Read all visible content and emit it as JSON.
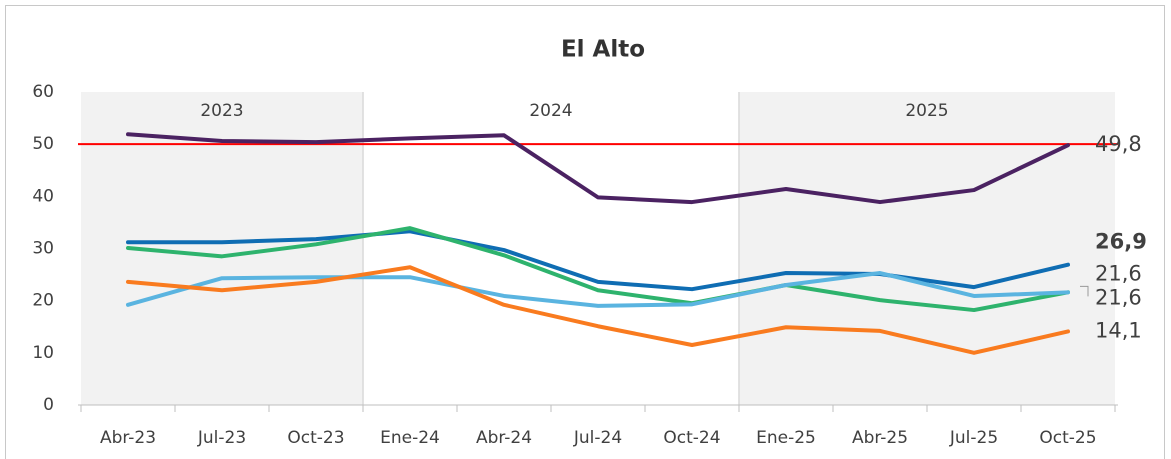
{
  "chart_data": {
    "type": "line",
    "title": "El Alto",
    "categories": [
      "Abr-23",
      "Jul-23",
      "Oct-23",
      "Ene-24",
      "Abr-24",
      "Jul-24",
      "Oct-24",
      "Ene-25",
      "Abr-25",
      "Jul-25",
      "Oct-25"
    ],
    "groups": [
      {
        "label": "2023",
        "count": 3
      },
      {
        "label": "2024",
        "count": 4
      },
      {
        "label": "2025",
        "count": 4
      }
    ],
    "reference": {
      "value": 50,
      "color": "#ff0000"
    },
    "series": [
      {
        "color": "#4b2262",
        "values": [
          51.9,
          50.6,
          50.4,
          51.1,
          51.7,
          39.8,
          38.9,
          41.4,
          38.9,
          41.2,
          49.8
        ],
        "value_labels": [
          null,
          null,
          null,
          null,
          null,
          null,
          null,
          null,
          null,
          null,
          "49,8"
        ],
        "label_color": "#404040"
      },
      {
        "color": "#0f6db3",
        "values": [
          31.2,
          31.2,
          31.8,
          33.3,
          29.7,
          23.6,
          22.2,
          25.3,
          25.1,
          22.6,
          26.9
        ],
        "value_labels": [
          null,
          null,
          null,
          null,
          null,
          null,
          null,
          null,
          null,
          null,
          "26,9"
        ],
        "label_color": "#0f6db3",
        "bold": true
      },
      {
        "color": "#2eb36d",
        "values": [
          30.1,
          28.5,
          30.8,
          33.9,
          28.7,
          22.0,
          19.5,
          23.0,
          20.1,
          18.2,
          21.6
        ],
        "value_labels": [
          null,
          null,
          null,
          null,
          null,
          null,
          null,
          null,
          null,
          null,
          "21,6"
        ],
        "label_color": "#2eb36d"
      },
      {
        "color": "#5ab4e0",
        "values": [
          19.2,
          24.3,
          24.5,
          24.5,
          20.9,
          19.0,
          19.3,
          23.0,
          25.3,
          20.9,
          21.6
        ],
        "value_labels": [
          null,
          null,
          null,
          null,
          null,
          null,
          null,
          null,
          null,
          null,
          "21,6"
        ],
        "label_color": "#5ab4e0"
      },
      {
        "color": "#f97b1f",
        "values": [
          23.6,
          22.0,
          23.6,
          26.4,
          19.2,
          15.1,
          11.5,
          14.9,
          14.2,
          10.0,
          14.1
        ],
        "value_labels": [
          null,
          null,
          null,
          null,
          null,
          null,
          null,
          null,
          null,
          null,
          "14,1"
        ],
        "label_color": "#f97b1f"
      }
    ],
    "ylim": [
      0,
      60
    ],
    "yticks": [
      0,
      10,
      20,
      30,
      40,
      50,
      60
    ]
  }
}
